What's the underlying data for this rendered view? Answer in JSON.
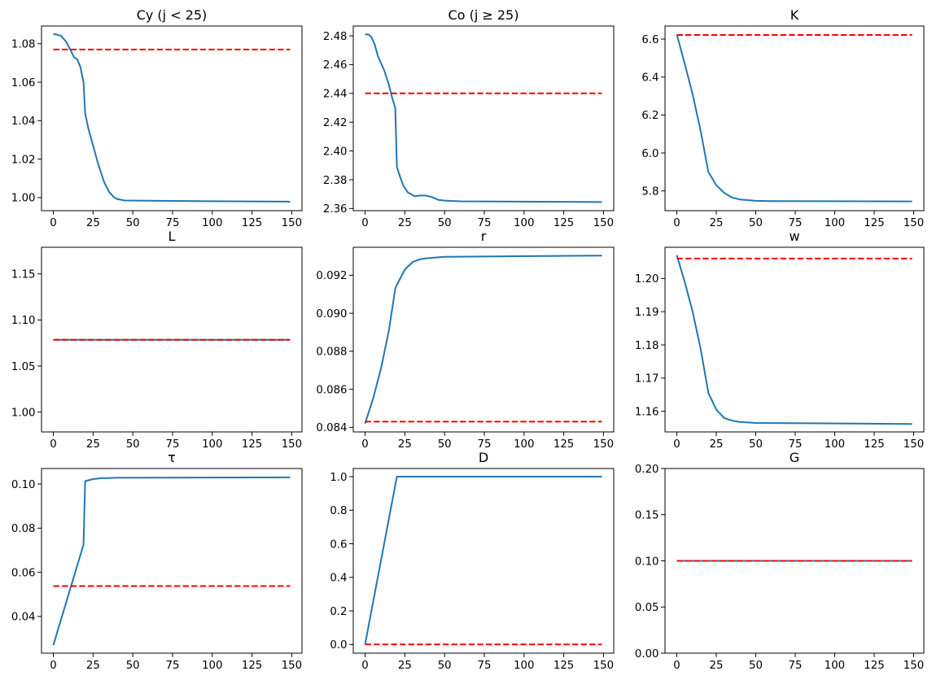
{
  "chart_data": [
    {
      "type": "line",
      "title": "Cy (j < 25)",
      "xlim": [
        -7.45,
        156.45
      ],
      "ylim": [
        0.9932,
        1.0892
      ],
      "xticks": [
        "0",
        "25",
        "50",
        "75",
        "100",
        "125",
        "150"
      ],
      "yticks": [
        "1.00",
        "1.02",
        "1.04",
        "1.06",
        "1.08"
      ],
      "series": [
        {
          "x": [
            0,
            2,
            5,
            8,
            10,
            13,
            15,
            17,
            19,
            20,
            22,
            25,
            28,
            30,
            32,
            35,
            38,
            40,
            45,
            60,
            100,
            148,
            149
          ],
          "y": [
            1.085,
            1.0848,
            1.084,
            1.081,
            1.078,
            1.073,
            1.072,
            1.068,
            1.06,
            1.044,
            1.036,
            1.027,
            1.018,
            1.013,
            1.008,
            1.003,
            1.0003,
            0.9993,
            0.9985,
            0.9984,
            0.9981,
            0.9979,
            0.9976
          ]
        }
      ],
      "reference": 1.077
    },
    {
      "type": "line",
      "title": "Co (j  ≥  25)",
      "xlim": [
        -7.45,
        156.45
      ],
      "ylim": [
        2.3585,
        2.4868
      ],
      "xticks": [
        "0",
        "25",
        "50",
        "75",
        "100",
        "125",
        "150"
      ],
      "yticks": [
        "2.36",
        "2.38",
        "2.40",
        "2.42",
        "2.44",
        "2.46",
        "2.48"
      ],
      "series": [
        {
          "x": [
            0,
            2,
            4,
            6,
            8,
            12,
            15,
            17,
            19,
            20,
            22,
            24,
            27,
            29,
            31,
            35,
            38,
            42,
            46,
            50,
            60,
            149
          ],
          "y": [
            2.481,
            2.481,
            2.479,
            2.474,
            2.466,
            2.456,
            2.446,
            2.437,
            2.43,
            2.389,
            2.382,
            2.376,
            2.371,
            2.37,
            2.3685,
            2.369,
            2.369,
            2.368,
            2.366,
            2.3655,
            2.365,
            2.3645
          ]
        }
      ],
      "reference": 2.44
    },
    {
      "type": "line",
      "title": "K",
      "xlim": [
        -7.45,
        156.45
      ],
      "ylim": [
        5.696,
        6.669
      ],
      "xticks": [
        "0",
        "25",
        "50",
        "75",
        "100",
        "125",
        "150"
      ],
      "yticks": [
        "5.8",
        "6.0",
        "6.2",
        "6.4",
        "6.6"
      ],
      "series": [
        {
          "x": [
            0,
            5,
            10,
            15,
            20,
            25,
            30,
            35,
            40,
            50,
            60,
            149
          ],
          "y": [
            6.624,
            6.47,
            6.31,
            6.12,
            5.9,
            5.83,
            5.79,
            5.765,
            5.755,
            5.748,
            5.746,
            5.745
          ]
        }
      ],
      "reference": 6.622
    },
    {
      "type": "line",
      "title": "L",
      "xlim": [
        -7.45,
        156.45
      ],
      "ylim": [
        0.9785,
        1.1789
      ],
      "xticks": [
        "0",
        "25",
        "50",
        "75",
        "100",
        "125",
        "150"
      ],
      "yticks": [
        "1.00",
        "1.05",
        "1.10",
        "1.15"
      ],
      "series": [
        {
          "x": [
            0,
            149
          ],
          "y": [
            1.0785,
            1.0785
          ]
        }
      ],
      "reference": 1.0785
    },
    {
      "type": "line",
      "title": "r",
      "xlim": [
        -7.45,
        156.45
      ],
      "ylim": [
        0.08376,
        0.09347
      ],
      "xticks": [
        "0",
        "25",
        "50",
        "75",
        "100",
        "125",
        "150"
      ],
      "yticks": [
        "0.084",
        "0.086",
        "0.088",
        "0.090",
        "0.092"
      ],
      "series": [
        {
          "x": [
            0,
            5,
            10,
            15,
            19,
            20,
            25,
            30,
            35,
            40,
            50,
            149
          ],
          "y": [
            0.0842,
            0.0855,
            0.0871,
            0.0891,
            0.0913,
            0.0915,
            0.0923,
            0.0927,
            0.09285,
            0.0929,
            0.09297,
            0.09303
          ]
        }
      ],
      "reference": 0.0843
    },
    {
      "type": "line",
      "title": "w",
      "xlim": [
        -7.45,
        156.45
      ],
      "ylim": [
        1.1538,
        1.2094
      ],
      "xticks": [
        "0",
        "25",
        "50",
        "75",
        "100",
        "125",
        "150"
      ],
      "yticks": [
        "1.16",
        "1.17",
        "1.18",
        "1.19",
        "1.20"
      ],
      "series": [
        {
          "x": [
            0,
            5,
            10,
            15,
            20,
            25,
            30,
            35,
            40,
            50,
            149
          ],
          "y": [
            1.207,
            1.199,
            1.19,
            1.179,
            1.1655,
            1.1605,
            1.158,
            1.1572,
            1.1568,
            1.1565,
            1.1562
          ]
        }
      ],
      "reference": 1.206
    },
    {
      "type": "line",
      "title": "τ",
      "xlim": [
        -7.45,
        156.45
      ],
      "ylim": [
        0.0234,
        0.107
      ],
      "xticks": [
        "0",
        "25",
        "50",
        "75",
        "100",
        "125",
        "150"
      ],
      "yticks": [
        "0.04",
        "0.06",
        "0.08",
        "0.10"
      ],
      "series": [
        {
          "x": [
            0,
            19,
            20,
            25,
            30,
            40,
            149
          ],
          "y": [
            0.027,
            0.0725,
            0.1013,
            0.1022,
            0.1026,
            0.1028,
            0.103
          ]
        }
      ],
      "reference": 0.0538
    },
    {
      "type": "line",
      "title": "D",
      "xlim": [
        -7.45,
        156.45
      ],
      "ylim": [
        -0.052,
        1.0485
      ],
      "xticks": [
        "0",
        "25",
        "50",
        "75",
        "100",
        "125",
        "150"
      ],
      "yticks": [
        "0.0",
        "0.2",
        "0.4",
        "0.6",
        "0.8",
        "1.0"
      ],
      "series": [
        {
          "x": [
            0,
            20,
            149
          ],
          "y": [
            0,
            1.0,
            1.0
          ]
        }
      ],
      "reference": 0.0
    },
    {
      "type": "line",
      "title": "G",
      "xlim": [
        -7.45,
        156.45
      ],
      "ylim": [
        0,
        0.2
      ],
      "xticks": [
        "0",
        "25",
        "50",
        "75",
        "100",
        "125",
        "150"
      ],
      "yticks": [
        "0.00",
        "0.05",
        "0.10",
        "0.15",
        "0.20"
      ],
      "series": [
        {
          "x": [
            0,
            149
          ],
          "y": [
            0.1,
            0.1
          ]
        }
      ],
      "reference": 0.1
    }
  ],
  "colors": {
    "series": "#1f77b4",
    "reference": "#ff0000"
  },
  "grid": false
}
